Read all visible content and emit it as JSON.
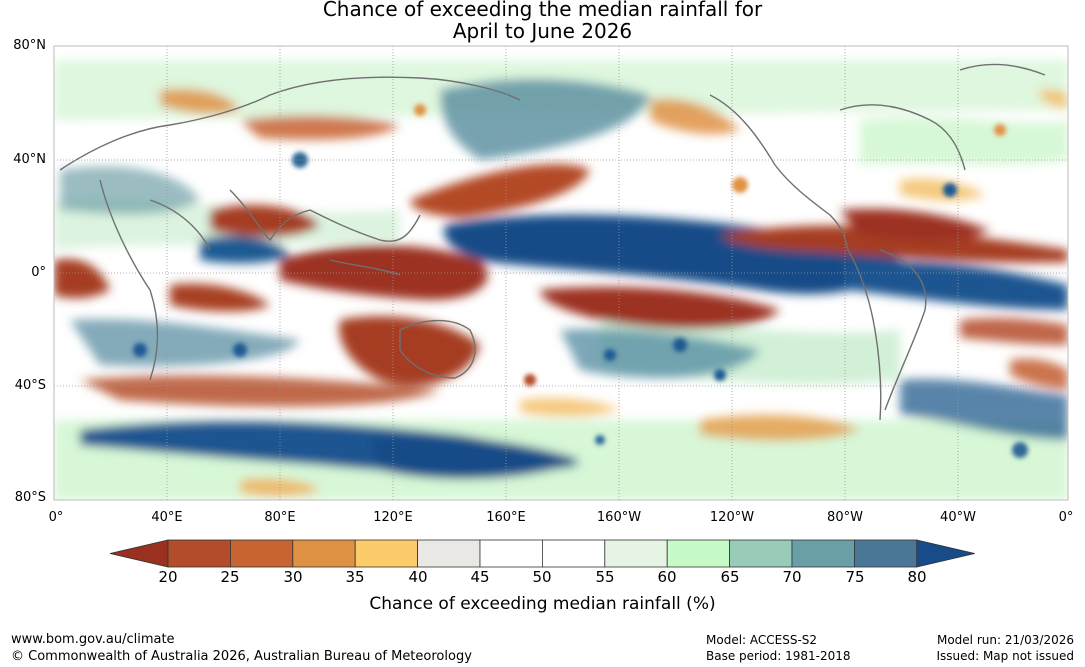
{
  "title": {
    "line1": "Chance of exceeding the median rainfall for",
    "line2": "April to June 2026"
  },
  "map": {
    "lat_labels": [
      "80°N",
      "40°N",
      "0°",
      "40°S",
      "80°S"
    ],
    "lon_labels": [
      "0°",
      "40°E",
      "80°E",
      "120°E",
      "160°E",
      "160°W",
      "120°W",
      "80°W",
      "40°W",
      "0°"
    ]
  },
  "colorbar": {
    "title": "Chance of exceeding median rainfall (%)",
    "ticks": [
      "20",
      "25",
      "30",
      "35",
      "40",
      "45",
      "50",
      "55",
      "60",
      "65",
      "70",
      "75",
      "80"
    ],
    "colors": [
      "#9a3020",
      "#b24c2a",
      "#c86432",
      "#e09244",
      "#fccb6a",
      "#e9e8e4",
      "#ffffff",
      "#ffffff",
      "#e6f4e6",
      "#c6fac6",
      "#98ccb8",
      "#6a9fa8",
      "#4a7796",
      "#174c88"
    ]
  },
  "footer": {
    "url": "www.bom.gov.au/climate",
    "copyright": "© Commonwealth of Australia 2026, Australian Bureau of Meteorology",
    "model": "Model: ACCESS-S2",
    "base_period": "Base period: 1981-2018",
    "model_run": "Model run: 21/03/2026",
    "issued": "Issued: Map not issued"
  }
}
